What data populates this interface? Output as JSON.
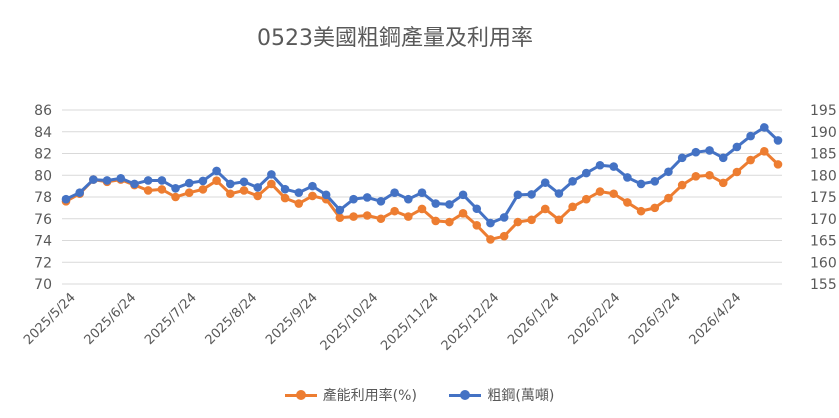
{
  "chart_data": {
    "type": "line",
    "title": "0523美國粗鋼產量及利用率",
    "x_labels": [
      "2025/5/24",
      "2025/6/24",
      "2025/7/24",
      "2025/8/24",
      "2025/9/24",
      "2025/10/24",
      "2025/11/24",
      "2025/12/24",
      "2026/1/24",
      "2026/2/24",
      "2026/3/24",
      "2026/4/24"
    ],
    "y_left": {
      "min": 70,
      "max": 86,
      "step": 2,
      "ticks": [
        "70",
        "72",
        "74",
        "76",
        "78",
        "80",
        "82",
        "84",
        "86"
      ]
    },
    "y_right": {
      "min": 155,
      "max": 195,
      "step": 5,
      "ticks": [
        "155",
        "160",
        "165",
        "170",
        "175",
        "180",
        "185",
        "190",
        "195"
      ]
    },
    "legend_position": "bottom",
    "grid": true,
    "series": [
      {
        "name": "產能利用率(%)",
        "axis": "left",
        "color": "#ED7D31",
        "values": [
          77.6,
          78.3,
          79.6,
          79.4,
          79.6,
          79.1,
          78.6,
          78.7,
          78.0,
          78.4,
          78.7,
          79.5,
          78.3,
          78.6,
          78.1,
          79.2,
          77.9,
          77.4,
          78.1,
          77.8,
          76.1,
          76.2,
          76.3,
          76.0,
          76.7,
          76.2,
          76.9,
          75.8,
          75.7,
          76.5,
          75.4,
          74.1,
          74.4,
          75.7,
          75.9,
          76.9,
          75.9,
          77.1,
          77.8,
          78.5,
          78.3,
          77.5,
          76.7,
          77.0,
          77.9,
          79.1,
          79.9,
          80.0,
          79.3,
          80.3,
          81.4,
          82.2,
          81.0
        ]
      },
      {
        "name": "粗鋼(萬噸)",
        "axis": "right",
        "color": "#4472C4",
        "values": [
          174.5,
          176.0,
          179.0,
          178.8,
          179.3,
          178.0,
          178.8,
          178.8,
          177.0,
          178.2,
          178.7,
          181.0,
          178.0,
          178.5,
          177.2,
          180.2,
          176.8,
          176.0,
          177.5,
          175.5,
          172.0,
          174.5,
          174.9,
          174.0,
          176.0,
          174.5,
          176.0,
          173.5,
          173.3,
          175.5,
          172.3,
          169.0,
          170.3,
          175.5,
          175.6,
          178.3,
          175.8,
          178.6,
          180.5,
          182.3,
          182.0,
          179.5,
          178.0,
          178.6,
          180.8,
          184.0,
          185.3,
          185.7,
          184.0,
          186.5,
          189.0,
          191.0,
          188.0
        ]
      }
    ]
  }
}
